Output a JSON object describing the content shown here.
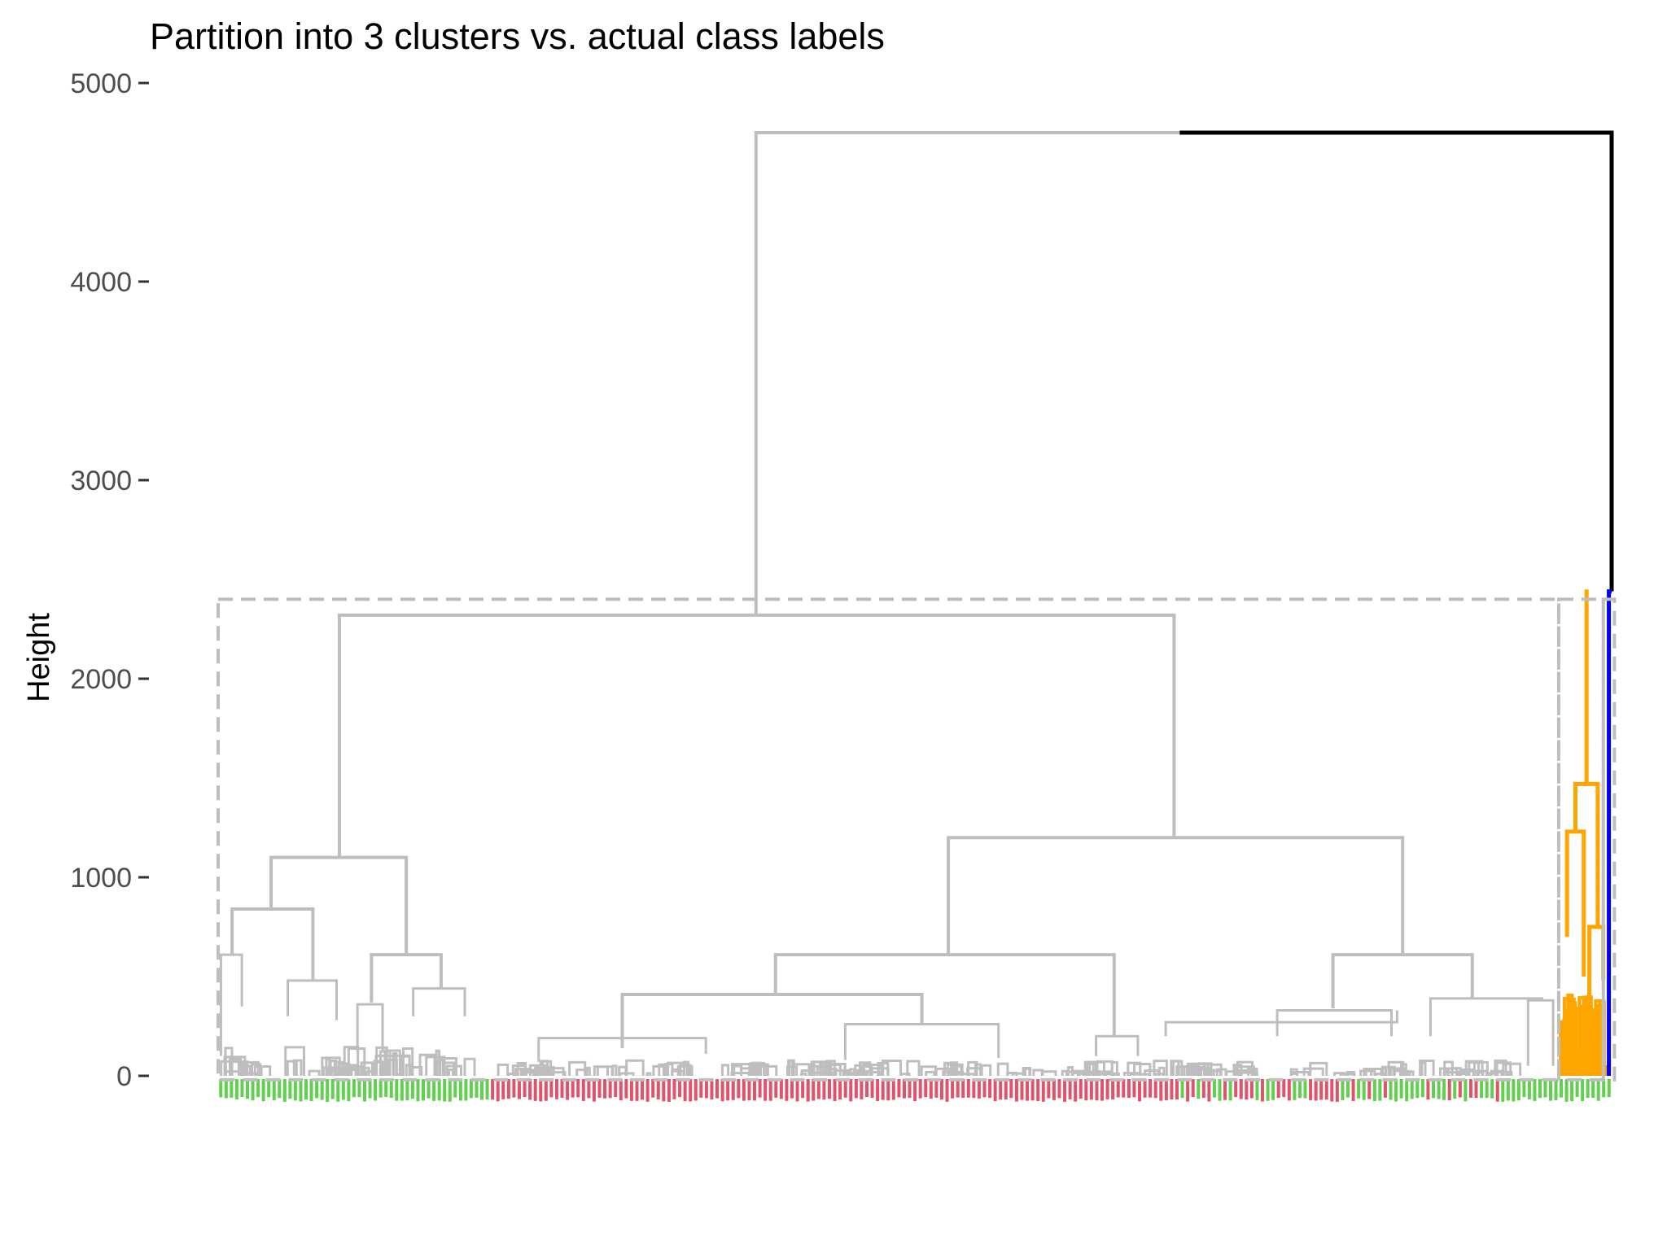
{
  "chart_data": {
    "type": "dendrogram",
    "title": "Partition into 3 clusters vs. actual class labels",
    "xlabel": "",
    "ylabel": "Height",
    "ylim": [
      0,
      5000
    ],
    "yticks": [
      0,
      1000,
      2000,
      3000,
      4000,
      5000
    ],
    "grid": false,
    "legend": "none",
    "k_clusters": 3,
    "colors": {
      "branch_default": "#bebebe",
      "root_link": "#000000",
      "cluster_orange": "#ffa500",
      "cluster_blue": "#0000ff",
      "cluster_rect": "#bebebe",
      "label_green": "#61d04f",
      "label_red": "#df536b"
    },
    "merges": [
      {
        "name": "root",
        "height": 4750
      },
      {
        "name": "big-grey-cluster",
        "height": 2320
      },
      {
        "name": "right-small-pair",
        "height": 2440
      },
      {
        "name": "orange-cluster",
        "height": 2450
      },
      {
        "name": "orange-sub",
        "height": 1470
      },
      {
        "name": "left-subtree",
        "height": 1100
      },
      {
        "name": "middle-right-subtree",
        "height": 1200
      },
      {
        "name": "left-left",
        "height": 840
      },
      {
        "name": "left-right",
        "height": 610
      },
      {
        "name": "middle-left",
        "height": 610
      },
      {
        "name": "far-right",
        "height": 610
      },
      {
        "name": "mid-a",
        "height": 410
      },
      {
        "name": "far-right-b",
        "height": 390
      }
    ],
    "clusters": [
      {
        "name": "cluster-1",
        "color": "#bebebe",
        "height": 2320
      },
      {
        "name": "cluster-2",
        "color": "#ffa500",
        "height": 2450
      },
      {
        "name": "cluster-3",
        "color": "#0000ff",
        "height": 2440
      }
    ],
    "cut_height": 2400,
    "label_bands": [
      {
        "class": "green",
        "from": 0.0,
        "to": 0.195
      },
      {
        "class": "red",
        "from": 0.195,
        "to": 0.69
      },
      {
        "class": "mixed",
        "from": 0.69,
        "to": 0.92
      },
      {
        "class": "green",
        "from": 0.92,
        "to": 1.0
      }
    ]
  }
}
